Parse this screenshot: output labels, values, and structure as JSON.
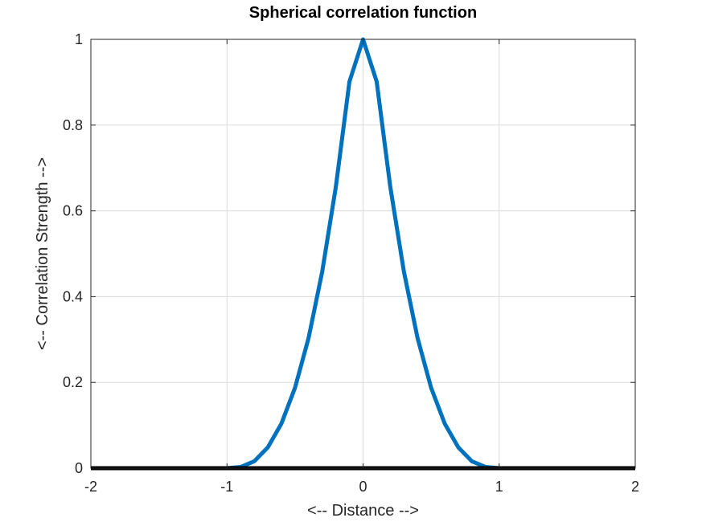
{
  "chart_data": {
    "type": "line",
    "title": "Spherical correlation function",
    "xlabel": "<-- Distance -->",
    "ylabel": "<-- Correlation Strength -->",
    "xlim": [
      -2,
      2
    ],
    "ylim": [
      0,
      1
    ],
    "xticks": [
      -2,
      -1,
      0,
      1,
      2
    ],
    "xtick_labels": [
      "-2",
      "-1",
      "0",
      "1",
      "2"
    ],
    "yticks": [
      0,
      0.2,
      0.4,
      0.6,
      0.8,
      1
    ],
    "ytick_labels": [
      "0",
      "0.2",
      "0.4",
      "0.6",
      "0.8",
      "1"
    ],
    "grid": true,
    "legend": "none",
    "series": [
      {
        "color": "#0072BD",
        "x": [
          -2,
          -1.5,
          -1.0,
          -0.9,
          -0.8,
          -0.7,
          -0.6,
          -0.5,
          -0.4,
          -0.3,
          -0.2,
          -0.1,
          0,
          0.1,
          0.2,
          0.3,
          0.4,
          0.5,
          0.6,
          0.7,
          0.8,
          0.9,
          1.0,
          1.5,
          2
        ],
        "y": [
          0,
          0,
          0,
          0.0028,
          0.016,
          0.0485,
          0.104,
          0.1875,
          0.304,
          0.4585,
          0.656,
          0.9015,
          1.0,
          0.9015,
          0.656,
          0.4585,
          0.304,
          0.1875,
          0.104,
          0.0485,
          0.016,
          0.0028,
          0,
          0,
          0
        ]
      },
      {
        "color": "#000000",
        "x": [
          -2,
          2
        ],
        "y": [
          0,
          0
        ]
      }
    ]
  }
}
